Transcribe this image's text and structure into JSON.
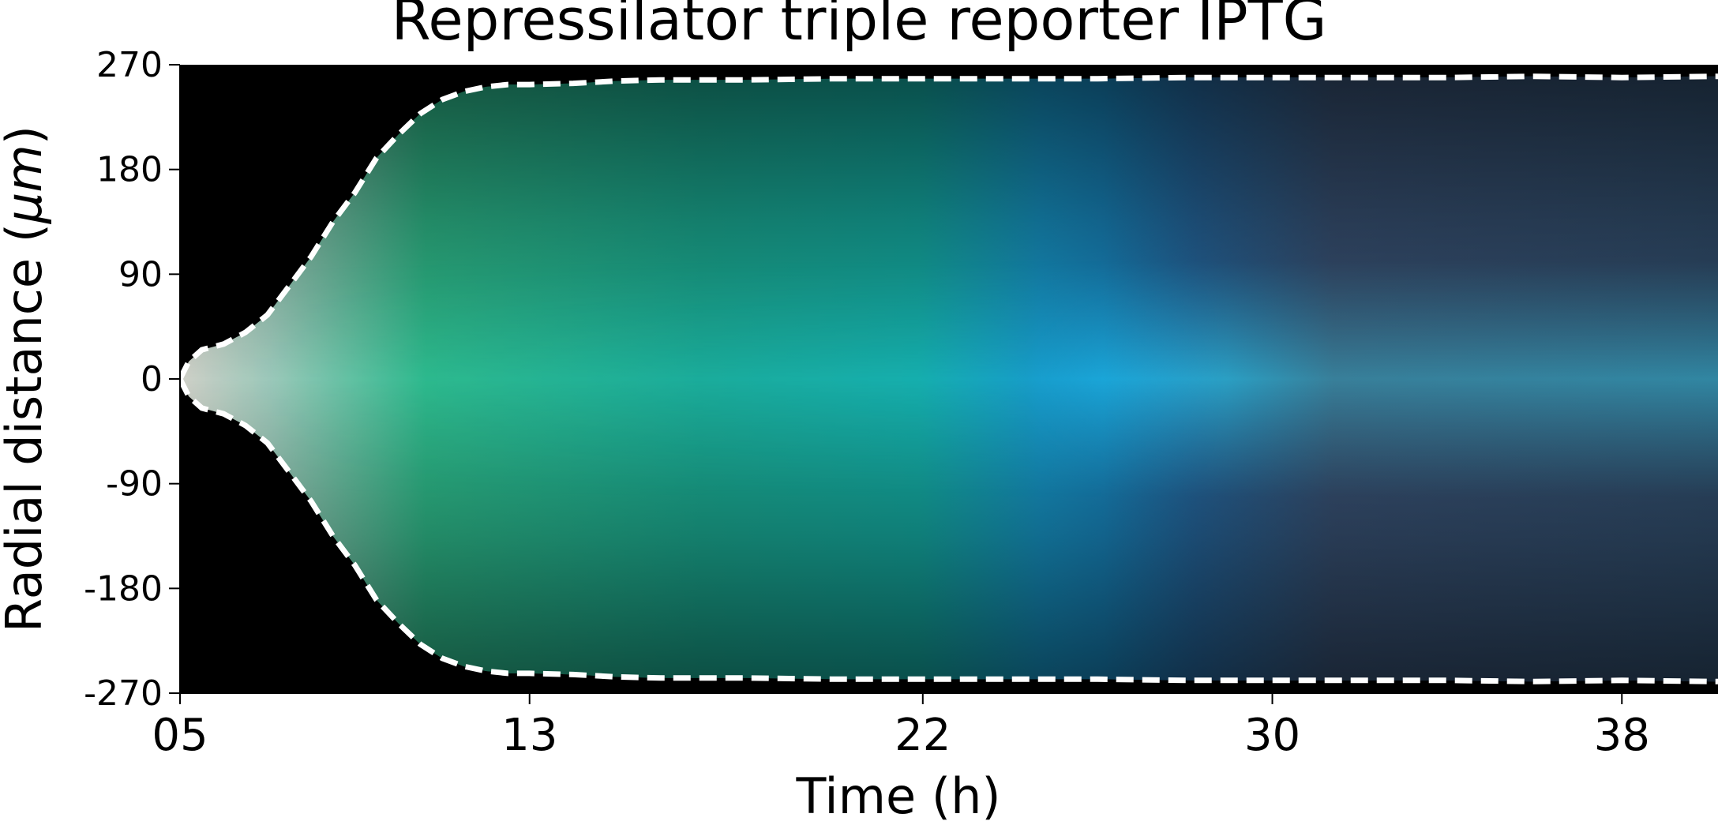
{
  "chart_data": {
    "type": "heatmap",
    "title": "Repressilator triple reporter IPTG",
    "xlabel": "Time (h)",
    "ylabel_main": "Radial distance (",
    "ylabel_unit": "μm",
    "ylabel_close": ")",
    "x_ticks": [
      "05",
      "13",
      "22",
      "30",
      "38"
    ],
    "x_tick_values": [
      5,
      13,
      22,
      30,
      38
    ],
    "xlim": [
      5,
      40.2
    ],
    "y_ticks": [
      "270",
      "180",
      "90",
      "0",
      "-90",
      "-180",
      "-270"
    ],
    "y_tick_values": [
      270,
      180,
      90,
      0,
      -90,
      -180,
      -270
    ],
    "ylim": [
      -270,
      270
    ],
    "colors": {
      "background": "#000000",
      "early_core": "#c8c8c0",
      "green_band": "#28c878",
      "teal_band": "#14c8c0",
      "blue_core": "#1e9bff",
      "cyan_core": "#1ed2ff",
      "red_edge": "#502828",
      "outline": "#ffffff"
    },
    "colony_edge": {
      "time": [
        5,
        5.2,
        5.5,
        6,
        6.5,
        7,
        7.5,
        8,
        8.5,
        9,
        9.5,
        10,
        10.5,
        11,
        11.5,
        12,
        12.5,
        13,
        14,
        15,
        16,
        18,
        20,
        22,
        24,
        26,
        28,
        30,
        32,
        34,
        36,
        38,
        40.2
      ],
      "radius": [
        0,
        15,
        25,
        30,
        40,
        55,
        80,
        105,
        135,
        160,
        190,
        210,
        228,
        240,
        247,
        251,
        253,
        253,
        254,
        256,
        257,
        257,
        258,
        258,
        258,
        258,
        259,
        259,
        259,
        259,
        260,
        259,
        260
      ]
    }
  }
}
